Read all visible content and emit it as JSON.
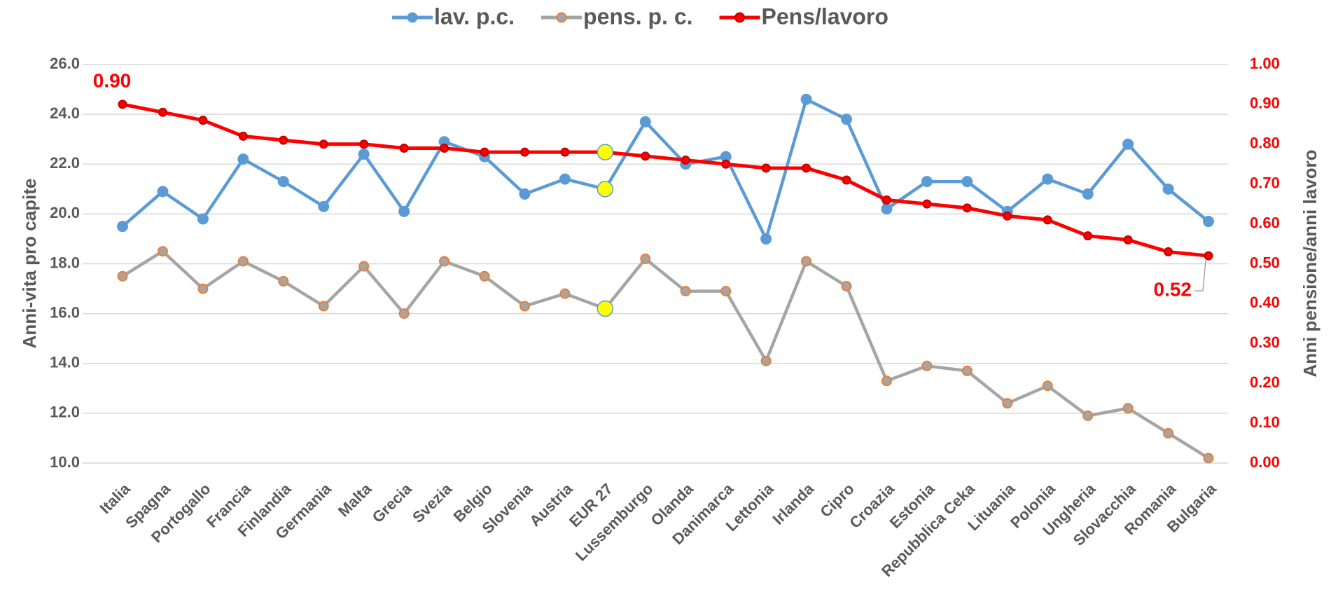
{
  "chart_data": {
    "type": "line",
    "categories": [
      "Italia",
      "Spagna",
      "Portogallo",
      "Francia",
      "Finlandia",
      "Germania",
      "Malta",
      "Grecia",
      "Svezia",
      "Belgio",
      "Slovenia",
      "Austria",
      "EUR 27",
      "Lussemburgo",
      "Olanda",
      "Danimarca",
      "Lettonia",
      "Irlanda",
      "Cipro",
      "Croazia",
      "Estonia",
      "Repubblica Ceka",
      "Lituania",
      "Polonia",
      "Ungheria",
      "Slovacchia",
      "Romania",
      "Bulgaria"
    ],
    "series": [
      {
        "name": "lav. p.c.",
        "color": "#5b9bd5",
        "values": [
          19.5,
          20.9,
          19.8,
          22.2,
          21.3,
          20.3,
          22.4,
          20.1,
          22.9,
          22.3,
          20.8,
          21.4,
          21.0,
          23.7,
          22.0,
          22.3,
          19.0,
          24.6,
          23.8,
          20.2,
          21.3,
          21.3,
          20.1,
          21.4,
          20.8,
          22.8,
          21.0,
          19.7
        ]
      },
      {
        "name": "pens. p. c.",
        "color": "#a5a5a5",
        "marker_edge": "#ed7d31",
        "values": [
          17.5,
          18.5,
          17.0,
          18.1,
          17.3,
          16.3,
          17.9,
          16.0,
          18.1,
          17.5,
          16.3,
          16.8,
          16.2,
          18.2,
          16.9,
          16.9,
          14.1,
          18.1,
          17.1,
          13.3,
          13.9,
          13.7,
          12.4,
          13.1,
          11.9,
          12.2,
          11.2,
          10.2
        ]
      },
      {
        "name": "Pens/lavoro",
        "color": "#ff0000",
        "marker_edge": "#c00000",
        "axis": "y2",
        "values": [
          0.9,
          0.88,
          0.86,
          0.82,
          0.81,
          0.8,
          0.8,
          0.79,
          0.79,
          0.78,
          0.78,
          0.78,
          0.78,
          0.77,
          0.76,
          0.75,
          0.74,
          0.74,
          0.71,
          0.66,
          0.65,
          0.64,
          0.62,
          0.61,
          0.57,
          0.56,
          0.53,
          0.52
        ],
        "value_labels": [
          "0.90",
          null,
          null,
          null,
          null,
          null,
          null,
          null,
          null,
          null,
          null,
          null,
          null,
          null,
          null,
          null,
          null,
          null,
          null,
          null,
          null,
          null,
          null,
          null,
          null,
          null,
          null,
          "0.52"
        ]
      }
    ],
    "highlight_category": "EUR 27",
    "highlight_color": "#ffff00",
    "ylabel": "Anni-vita  pro capite",
    "y2label": "Anni pensione/anni lavoro",
    "ylim": [
      10,
      26
    ],
    "yticks": [
      {
        "value": 10,
        "label": "10.0"
      },
      {
        "value": 12,
        "label": "12.0"
      },
      {
        "value": 14,
        "label": "14.0"
      },
      {
        "value": 16,
        "label": "16.0"
      },
      {
        "value": 18,
        "label": "18.0"
      },
      {
        "value": 20,
        "label": "20.0"
      },
      {
        "value": 22,
        "label": "22.0"
      },
      {
        "value": 24,
        "label": "24.0"
      },
      {
        "value": 26,
        "label": "26.0"
      }
    ],
    "y2lim": [
      0,
      1
    ],
    "y2ticks": [
      {
        "value": 0,
        "label": "0.00"
      },
      {
        "value": 0.1,
        "label": "0.10"
      },
      {
        "value": 0.2,
        "label": "0.20"
      },
      {
        "value": 0.3,
        "label": "0.30"
      },
      {
        "value": 0.4,
        "label": "0.40"
      },
      {
        "value": 0.5,
        "label": "0.50"
      },
      {
        "value": 0.6,
        "label": "0.60"
      },
      {
        "value": 0.7,
        "label": "0.70"
      },
      {
        "value": 0.8,
        "label": "0.80"
      },
      {
        "value": 0.9,
        "label": "0.90"
      },
      {
        "value": 1,
        "label": "1.00"
      }
    ],
    "grid": true,
    "legend": "top"
  }
}
